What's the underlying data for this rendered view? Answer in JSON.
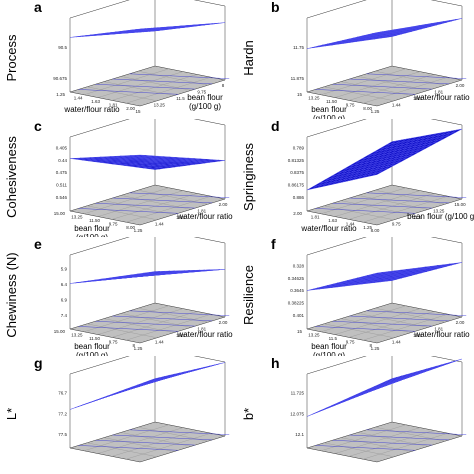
{
  "figure": {
    "chart_data": [
      {
        "panel": "a",
        "type": "surface",
        "ylabel": "Process",
        "axis1_label": "bean flour\n(g/100 g)",
        "axis2_label": "water/flour ratio",
        "axis1_ticks": [
          "15",
          "13.25",
          "11.5",
          "9.75",
          "8"
        ],
        "axis2_ticks": [
          "1.25",
          "1.44",
          "1.63",
          "1.81",
          "2.00"
        ],
        "z_ticks": [
          "90.675",
          "90.5"
        ],
        "corners": {
          "c00": 0.78,
          "c10": 0.5,
          "c01": 1.1,
          "c11": 0.82
        }
      },
      {
        "panel": "b",
        "type": "surface",
        "ylabel": "Hardn",
        "axis1_label": "water/flour ratio",
        "axis2_label": "bean flour\n(g/100 g)",
        "axis1_ticks": [
          "1.25",
          "1.44",
          "1.63",
          "1.81",
          "2.00"
        ],
        "axis2_ticks": [
          "15",
          "13.25",
          "11.50",
          "9.75",
          "8.00"
        ],
        "z_ticks": [
          "11.875",
          "11.75"
        ],
        "corners": {
          "c00": 0.62,
          "c10": 0.42,
          "c01": 1.05,
          "c11": 0.88
        }
      },
      {
        "panel": "c",
        "type": "surface",
        "ylabel": "Cohesiveness",
        "axis1_label": "water/flour ratio",
        "axis2_label": "bean flour\n(g/100 g)",
        "axis1_ticks": [
          "1.25",
          "1.44",
          "1.63",
          "1.81",
          "2.00"
        ],
        "axis2_ticks": [
          "15.00",
          "13.25",
          "11.50",
          "9.75",
          "8.00"
        ],
        "z_ticks": [
          "0.546",
          "0.511",
          "0.475",
          "0.44",
          "0.405"
        ],
        "corners": {
          "c00": 0.75,
          "c10": 0.22,
          "c01": 1.0,
          "c11": 0.55
        }
      },
      {
        "panel": "d",
        "type": "surface",
        "ylabel": "Springiness",
        "axis1_label": "bean flour (g/100 g)",
        "axis2_label": "water/flour ratio",
        "axis1_ticks": [
          "8.00",
          "9.75",
          "11.5",
          "13.25",
          "15.00"
        ],
        "axis2_ticks": [
          "2.00",
          "1.81",
          "1.63",
          "1.44",
          "1.25"
        ],
        "z_ticks": [
          "0.886",
          "0.86175",
          "0.8375",
          "0.81325",
          "0.789"
        ],
        "corners": {
          "c00": 0.3,
          "c10": 0.62,
          "c01": 0.72,
          "c11": 1.0
        }
      },
      {
        "panel": "e",
        "type": "surface",
        "ylabel": "Chewiness (N)",
        "axis1_label": "water/flour ratio",
        "axis2_label": "bean flour\n(g/100 g)",
        "axis1_ticks": [
          "1.25",
          "1.44",
          "1.63",
          "1.81",
          "2.00"
        ],
        "axis2_ticks": [
          "15.00",
          "13.25",
          "11.50",
          "9.75",
          "8"
        ],
        "z_ticks": [
          "7.4",
          "6.9",
          "6.4",
          "5.9"
        ],
        "corners": {
          "c00": 0.65,
          "c10": 0.45,
          "c01": 0.95,
          "c11": 0.68
        }
      },
      {
        "panel": "f",
        "type": "surface",
        "ylabel": "Resilience",
        "axis1_label": "water/flour ratio",
        "axis2_label": "bean flour\n(g/100 g)",
        "axis1_ticks": [
          "1.25",
          "1.44",
          "1.63",
          "1.81",
          "2.00"
        ],
        "axis2_ticks": [
          "15",
          "13.25",
          "11.5",
          "9.75",
          "8"
        ],
        "z_ticks": [
          "0.401",
          "0.38225",
          "0.3645",
          "0.34625",
          "0.328"
        ],
        "corners": {
          "c00": 0.55,
          "c10": 0.32,
          "c01": 1.0,
          "c11": 0.78
        }
      },
      {
        "panel": "g",
        "type": "surface",
        "ylabel": "L*",
        "axis1_label": "",
        "axis2_label": "",
        "axis1_ticks": [],
        "axis2_ticks": [],
        "z_ticks": [
          "77.5",
          "77.2",
          "76.7"
        ],
        "corners": {
          "c00": 0.55,
          "c10": 0.62,
          "c01": 1.1,
          "c11": 1.05
        }
      },
      {
        "panel": "h",
        "type": "surface",
        "ylabel": "b*",
        "axis1_label": "",
        "axis2_label": "",
        "axis1_ticks": [],
        "axis2_ticks": [],
        "z_ticks": [
          "12.1",
          "12.075",
          "11.725"
        ],
        "corners": {
          "c00": 0.45,
          "c10": 0.62,
          "c01": 1.05,
          "c11": 1.1
        }
      }
    ],
    "colors": {
      "surface": "#1010c8",
      "surface_grid": "#4a4aee",
      "floor": "#c0c0c0",
      "floor_grid": "#8a8a8a",
      "contour": "#2b2bd6",
      "box": "#333333"
    }
  }
}
